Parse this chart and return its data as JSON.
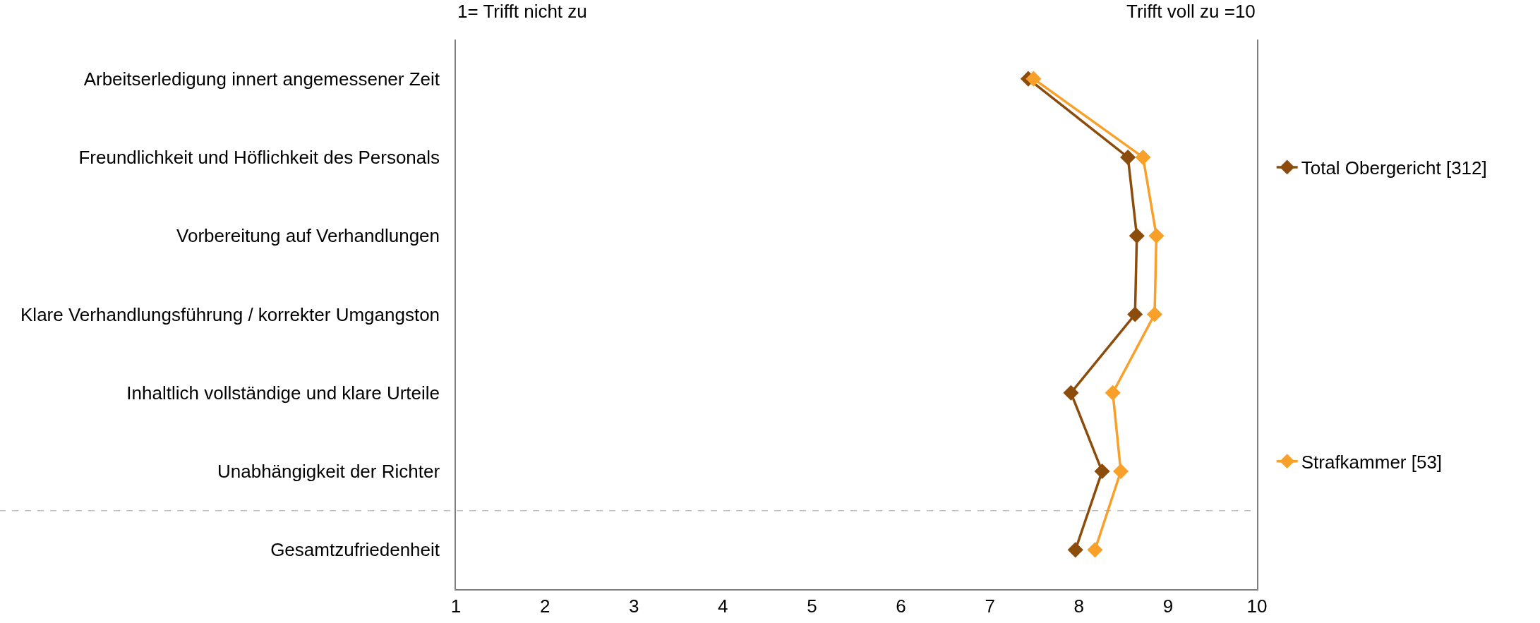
{
  "chart_data": {
    "type": "line",
    "orientation": "horizontal",
    "categories": [
      "Arbeitserledigung innert angemessener Zeit",
      "Freundlichkeit und Höflichkeit des Personals",
      "Vorbereitung auf Verhandlungen",
      "Klare Verhandlungsführung / korrekter Umgangston",
      "Inhaltlich vollständige und klare Urteile",
      "Unabhängigkeit der Richter",
      "Gesamtzufriedenheit"
    ],
    "series": [
      {
        "name": "Total Obergericht [312]",
        "color": "#8b4c0c",
        "values": [
          7.43,
          8.55,
          8.65,
          8.63,
          7.91,
          8.26,
          7.96
        ]
      },
      {
        "name": "Strafkammer [53]",
        "color": "#f9a02b",
        "values": [
          7.49,
          8.72,
          8.87,
          8.85,
          8.38,
          8.47,
          8.18
        ]
      }
    ],
    "xlim": [
      1,
      10
    ],
    "xticks": [
      1,
      2,
      3,
      4,
      5,
      6,
      7,
      8,
      9,
      10
    ],
    "annotations": [
      "1= Trifft nicht zu",
      "Trifft voll zu =10"
    ],
    "grid": false,
    "legend": "right",
    "marker": "diamond",
    "line_style": "solid"
  }
}
